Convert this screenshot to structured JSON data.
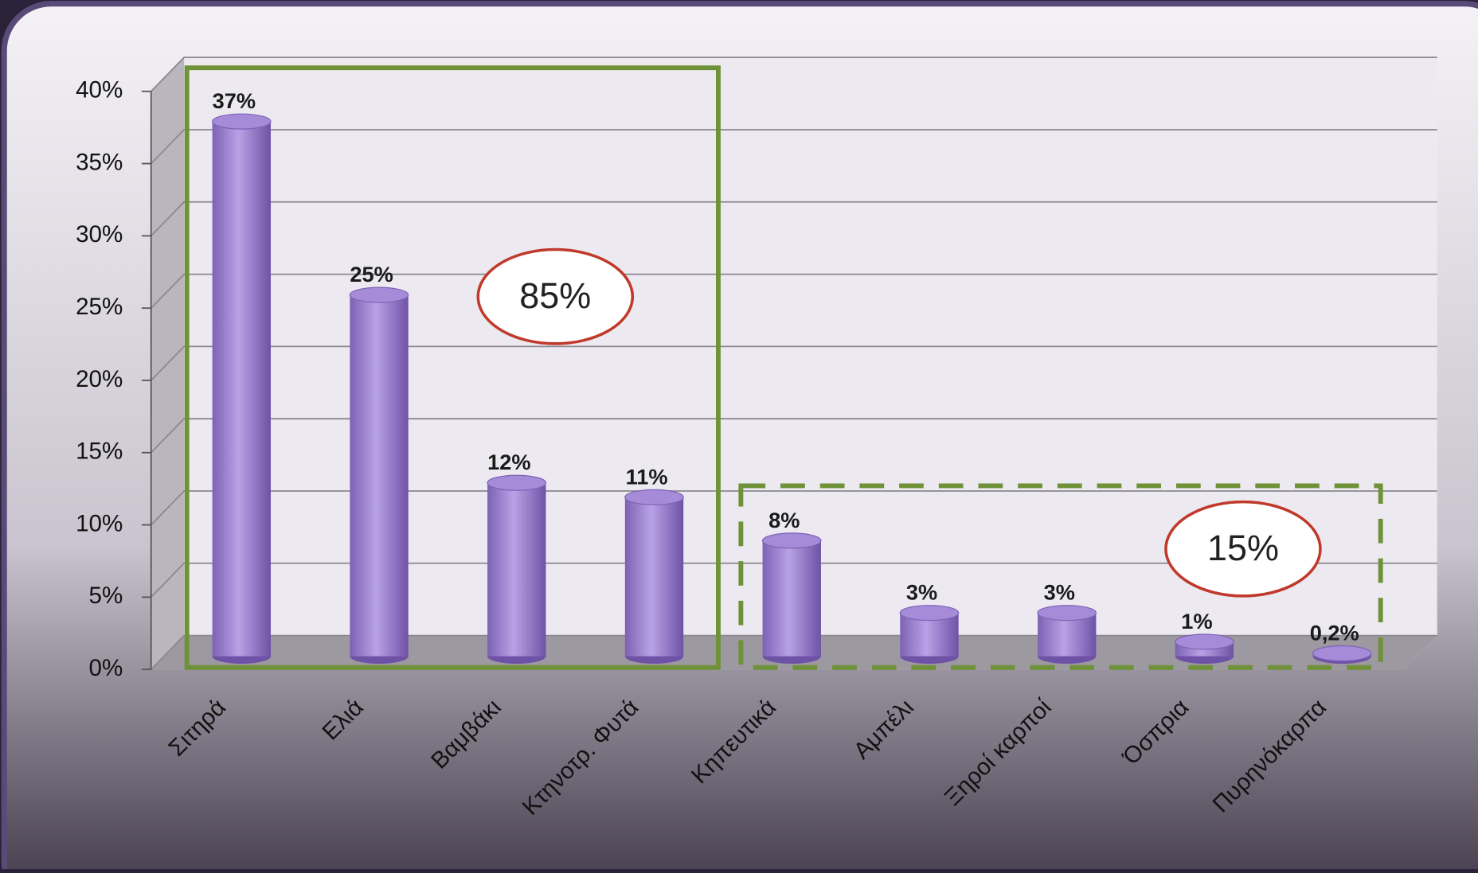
{
  "chart_data": {
    "type": "bar",
    "categories": [
      "Σιτηρά",
      "Ελιά",
      "Βαμβάκι",
      "Κτηνοτρ. Φυτά",
      "Κηπευτικά",
      "Αμπέλι",
      "Ξηροί καρποί",
      "Όσπρια",
      "Πυρηνόκαρπα"
    ],
    "values": [
      37,
      25,
      12,
      11,
      8,
      3,
      3,
      1,
      0.2
    ],
    "value_labels": [
      "37%",
      "25%",
      "12%",
      "11%",
      "8%",
      "3%",
      "3%",
      "1%",
      "0,2%"
    ],
    "color": "#9b7fd0",
    "ylim": [
      0,
      40
    ],
    "yticks": [
      {
        "value": 0,
        "label": "0%"
      },
      {
        "value": 5,
        "label": "5%"
      },
      {
        "value": 10,
        "label": "10%"
      },
      {
        "value": 15,
        "label": "15%"
      },
      {
        "value": 20,
        "label": "20%"
      },
      {
        "value": 25,
        "label": "25%"
      },
      {
        "value": 30,
        "label": "30%"
      },
      {
        "value": 35,
        "label": "35%"
      },
      {
        "value": 40,
        "label": "40%"
      }
    ],
    "grid": true,
    "annotations": [
      "85%",
      "15%"
    ]
  }
}
